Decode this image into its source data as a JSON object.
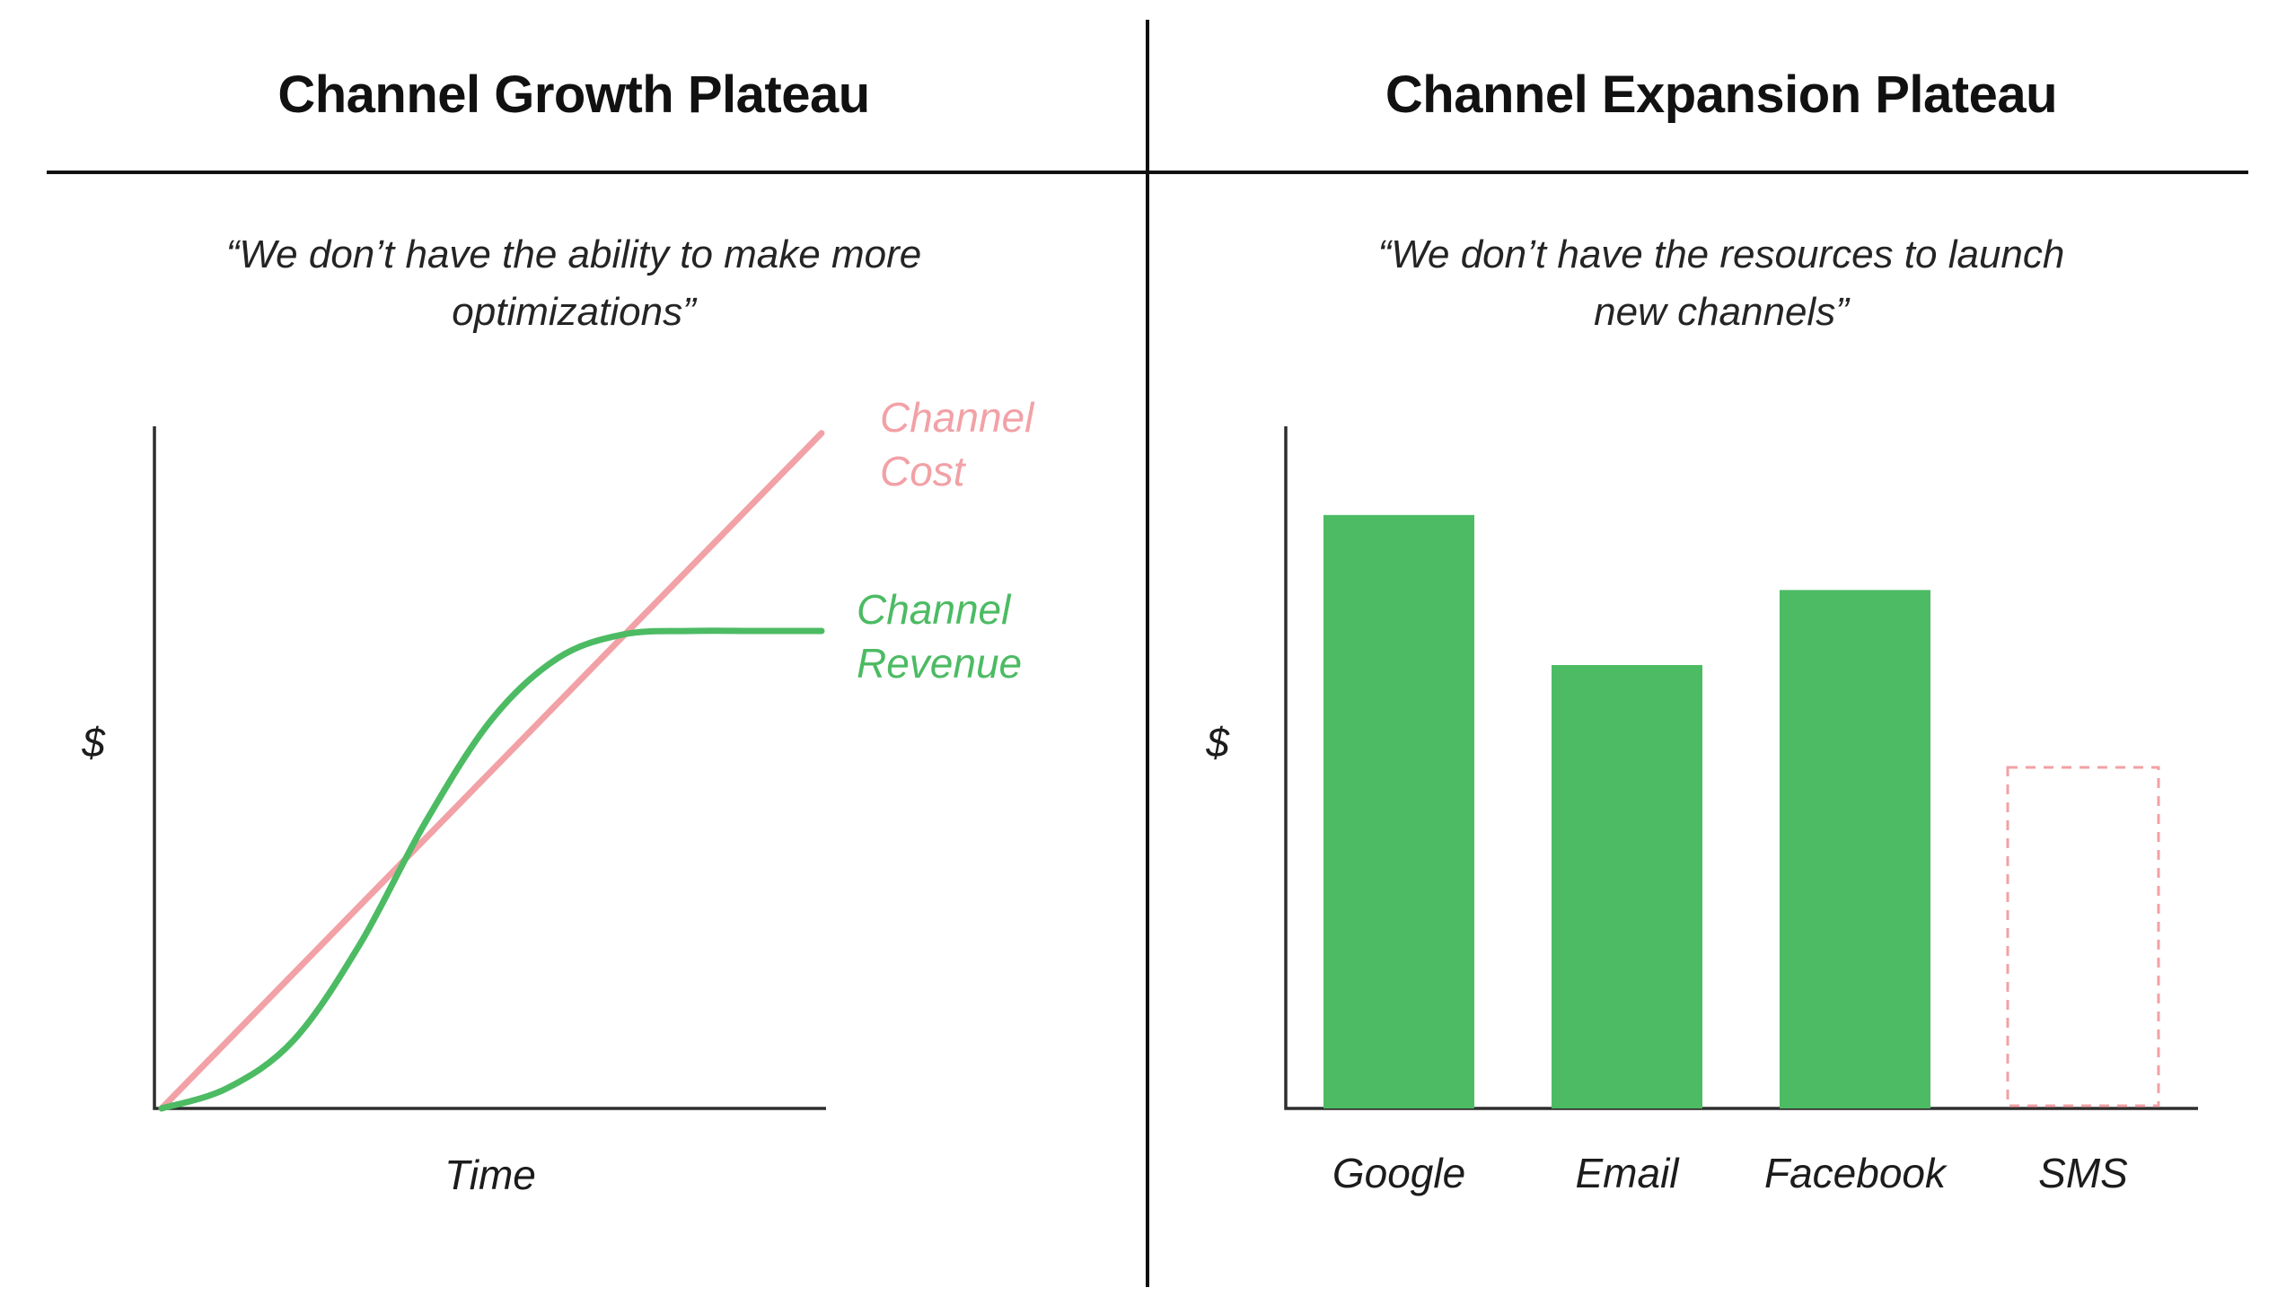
{
  "panels": {
    "left": {
      "title": "Channel Growth Plateau",
      "quote": "“We don’t have the ability to make more\noptimizations”"
    },
    "right": {
      "title": "Channel Expansion Plateau",
      "quote": "“We don’t have the resources to launch\nnew channels”"
    }
  },
  "colors": {
    "green": "#4CBB63",
    "pink": "#F2A1A6",
    "axis": "#2e2e2e",
    "title_text": "#111111"
  },
  "chart_data": [
    {
      "type": "line",
      "title": "Channel Growth Plateau",
      "subtitle": "“We don’t have the ability to make more optimizations”",
      "xlabel": "Time",
      "ylabel": "$",
      "x": [
        0,
        1,
        2,
        3,
        4,
        5,
        6,
        7,
        8,
        9,
        10
      ],
      "ylim": [
        0,
        100
      ],
      "grid": false,
      "axis_ticks": "none",
      "legend_position": "right-annotations",
      "series": [
        {
          "name": "Channel Cost",
          "color_key": "pink",
          "shape": "linear",
          "values": [
            0,
            9.9,
            19.8,
            29.7,
            39.6,
            49.5,
            59.4,
            69.3,
            79.2,
            89.1,
            99
          ]
        },
        {
          "name": "Channel Revenue",
          "color_key": "green",
          "shape": "s-curve-plateau",
          "values": [
            0,
            3,
            10,
            24,
            42,
            57,
            66,
            69.5,
            70,
            70,
            70
          ]
        }
      ]
    },
    {
      "type": "bar",
      "title": "Channel Expansion Plateau",
      "subtitle": "“We don’t have the resources to launch new channels”",
      "xlabel": "",
      "ylabel": "$",
      "categories": [
        "Google",
        "Email",
        "Facebook",
        "SMS"
      ],
      "values": [
        87,
        65,
        76,
        50
      ],
      "bar_styles": [
        "solid",
        "solid",
        "solid",
        "dashed-outline"
      ],
      "ylim": [
        0,
        100
      ],
      "grid": false,
      "axis_ticks": "none"
    }
  ]
}
